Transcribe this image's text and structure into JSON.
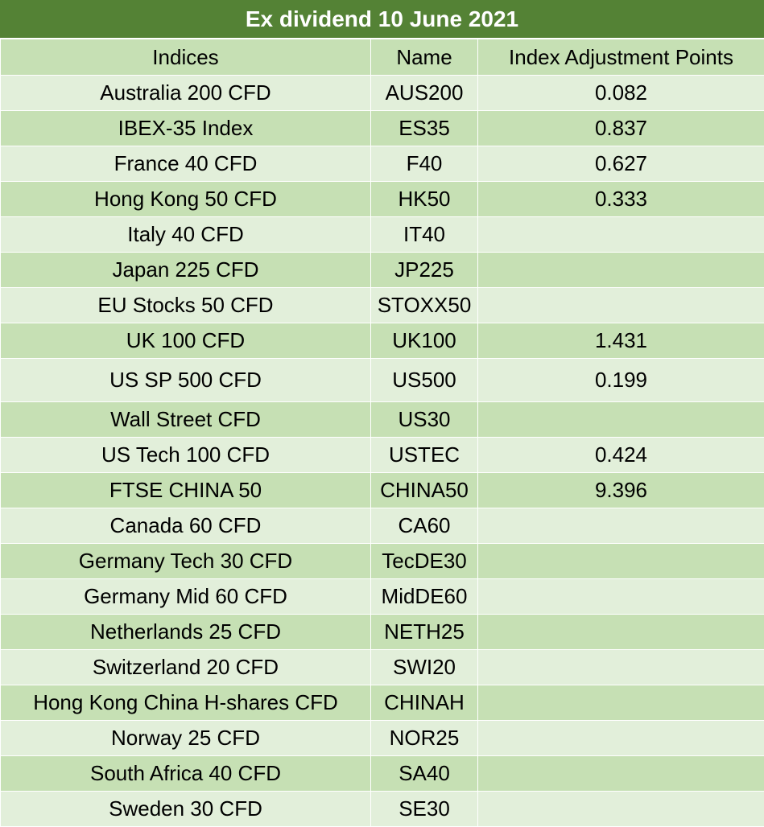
{
  "title": "Ex dividend 10 June 2021",
  "headers": {
    "indices": "Indices",
    "name": "Name",
    "points": "Index Adjustment Points"
  },
  "rows": [
    {
      "index": "Australia 200 CFD",
      "name": "AUS200",
      "points": "0.082"
    },
    {
      "index": "IBEX-35 Index",
      "name": "ES35",
      "points": "0.837"
    },
    {
      "index": "France 40 CFD",
      "name": "F40",
      "points": "0.627"
    },
    {
      "index": "Hong Kong 50 CFD",
      "name": "HK50",
      "points": "0.333"
    },
    {
      "index": "Italy 40 CFD",
      "name": "IT40",
      "points": ""
    },
    {
      "index": "Japan 225 CFD",
      "name": "JP225",
      "points": ""
    },
    {
      "index": "EU Stocks 50 CFD",
      "name": "STOXX50",
      "points": ""
    },
    {
      "index": "UK 100 CFD",
      "name": "UK100",
      "points": "1.431"
    },
    {
      "index": "US SP 500 CFD",
      "name": "US500",
      "points": "0.199"
    },
    {
      "index": "Wall Street CFD",
      "name": "US30",
      "points": ""
    },
    {
      "index": "US Tech 100 CFD",
      "name": "USTEC",
      "points": "0.424"
    },
    {
      "index": "FTSE CHINA 50",
      "name": "CHINA50",
      "points": "9.396"
    },
    {
      "index": "Canada 60 CFD",
      "name": "CA60",
      "points": ""
    },
    {
      "index": "Germany Tech 30 CFD",
      "name": "TecDE30",
      "points": ""
    },
    {
      "index": "Germany Mid 60 CFD",
      "name": "MidDE60",
      "points": ""
    },
    {
      "index": "Netherlands 25 CFD",
      "name": "NETH25",
      "points": ""
    },
    {
      "index": "Switzerland 20 CFD",
      "name": "SWI20",
      "points": ""
    },
    {
      "index": "Hong Kong China H-shares CFD",
      "name": "CHINAH",
      "points": ""
    },
    {
      "index": "Norway 25 CFD",
      "name": "NOR25",
      "points": ""
    },
    {
      "index": "South Africa 40 CFD",
      "name": "SA40",
      "points": ""
    },
    {
      "index": "Sweden 30 CFD",
      "name": "SE30",
      "points": ""
    }
  ],
  "colors": {
    "title_bg": "#548235",
    "header_bg": "#c6e0b4",
    "row_light": "#e2efda",
    "row_dark": "#c6e0b4"
  }
}
